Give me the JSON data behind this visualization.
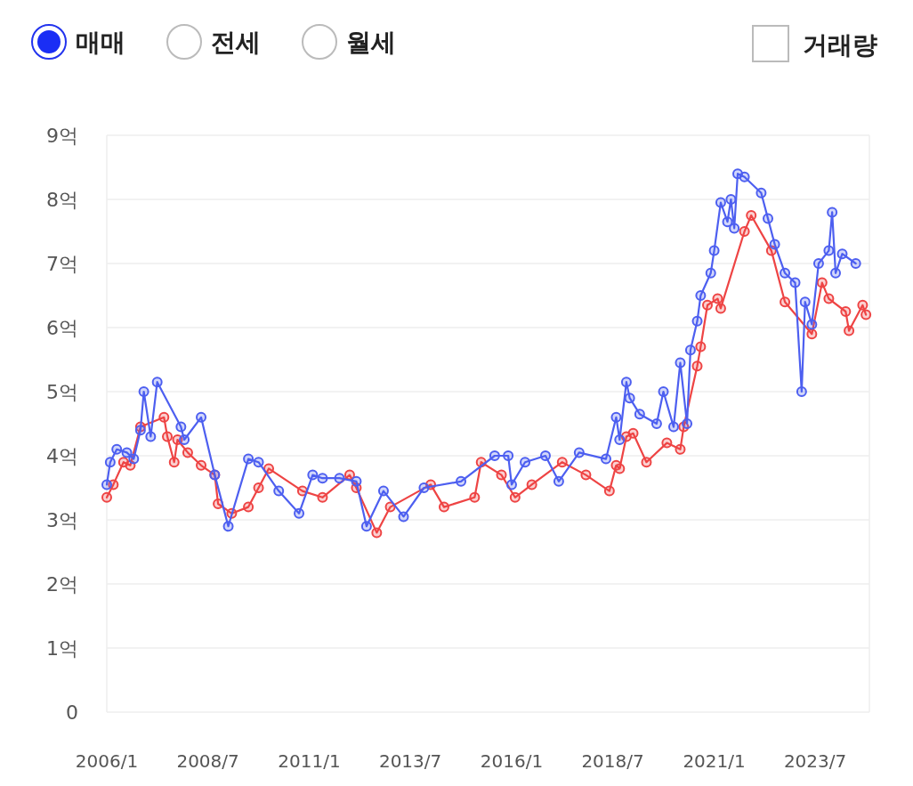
{
  "chart_data": {
    "type": "line",
    "annotations": [
      "매매",
      "전세",
      "월세",
      "거래량"
    ],
    "xlim": [
      "2006-01",
      "2024-11"
    ],
    "xticks": [
      {
        "value": "2006-01",
        "label": "2006/1"
      },
      {
        "value": "2008-07",
        "label": "2008/7"
      },
      {
        "value": "2011-01",
        "label": "2011/1"
      },
      {
        "value": "2013-07",
        "label": "2013/7"
      },
      {
        "value": "2016-01",
        "label": "2016/1"
      },
      {
        "value": "2018-07",
        "label": "2018/7"
      },
      {
        "value": "2021-01",
        "label": "2021/1"
      },
      {
        "value": "2023-07",
        "label": "2023/7"
      }
    ],
    "ylim": [
      0,
      9
    ],
    "yticks": [
      0,
      {
        "value": 1,
        "label": "1억"
      },
      {
        "value": 2,
        "label": "2억"
      },
      {
        "value": 3,
        "label": "3억"
      },
      {
        "value": 4,
        "label": "4억"
      },
      {
        "value": 5,
        "label": "5억"
      },
      {
        "value": 6,
        "label": "6억"
      },
      {
        "value": 7,
        "label": "7억"
      },
      {
        "value": 8,
        "label": "8억"
      },
      {
        "value": 9,
        "label": "9억"
      }
    ],
    "grid": "y",
    "marker": "circle",
    "line_style": "solid",
    "series": [
      {
        "color": "#ee4444",
        "x": [
          "2006-01",
          "2006-03",
          "2006-06",
          "2006-08",
          "2006-11",
          "2007-06",
          "2007-07",
          "2007-09",
          "2007-10",
          "2008-01",
          "2008-05",
          "2008-09",
          "2008-10",
          "2009-02",
          "2009-07",
          "2009-10",
          "2010-01",
          "2010-11",
          "2011-05",
          "2012-01",
          "2012-03",
          "2012-09",
          "2013-01",
          "2014-01",
          "2014-05",
          "2015-02",
          "2015-04",
          "2015-10",
          "2016-02",
          "2016-07",
          "2017-04",
          "2017-11",
          "2018-06",
          "2018-08",
          "2018-09",
          "2018-11",
          "2019-01",
          "2019-05",
          "2019-11",
          "2020-03",
          "2020-04",
          "2020-08",
          "2020-09",
          "2020-11",
          "2021-02",
          "2021-03",
          "2021-10",
          "2021-12",
          "2022-06",
          "2022-10",
          "2023-06",
          "2023-09",
          "2023-11",
          "2024-04",
          "2024-05",
          "2024-09",
          "2024-10"
        ],
        "values": [
          3.35,
          3.55,
          3.9,
          3.85,
          4.45,
          4.6,
          4.3,
          3.9,
          4.25,
          4.05,
          3.85,
          3.7,
          3.25,
          3.1,
          3.2,
          3.5,
          3.8,
          3.45,
          3.35,
          3.7,
          3.5,
          2.8,
          3.2,
          3.55,
          3.2,
          3.35,
          3.9,
          3.7,
          3.35,
          3.55,
          3.9,
          3.7,
          3.45,
          3.85,
          3.8,
          4.3,
          4.35,
          3.9,
          4.2,
          4.1,
          4.45,
          5.4,
          5.7,
          6.35,
          6.45,
          6.3,
          7.5,
          7.75,
          7.2,
          6.4,
          5.9,
          6.7,
          6.45,
          6.25,
          5.95,
          6.35,
          6.2
        ]
      },
      {
        "color": "#4d5ff0",
        "x": [
          "2006-01",
          "2006-02",
          "2006-04",
          "2006-07",
          "2006-09",
          "2006-11",
          "2006-12",
          "2007-02",
          "2007-04",
          "2007-11",
          "2007-12",
          "2008-05",
          "2008-09",
          "2009-01",
          "2009-07",
          "2009-10",
          "2010-04",
          "2010-10",
          "2011-02",
          "2011-05",
          "2011-10",
          "2012-03",
          "2012-06",
          "2012-11",
          "2013-05",
          "2013-11",
          "2014-10",
          "2015-08",
          "2015-12",
          "2016-01",
          "2016-05",
          "2016-11",
          "2017-03",
          "2017-09",
          "2018-05",
          "2018-08",
          "2018-09",
          "2018-11",
          "2018-12",
          "2019-03",
          "2019-08",
          "2019-10",
          "2020-01",
          "2020-03",
          "2020-05",
          "2020-06",
          "2020-08",
          "2020-09",
          "2020-12",
          "2021-01",
          "2021-03",
          "2021-05",
          "2021-06",
          "2021-07",
          "2021-08",
          "2021-10",
          "2022-03",
          "2022-05",
          "2022-07",
          "2022-10",
          "2023-01",
          "2023-03",
          "2023-04",
          "2023-06",
          "2023-08",
          "2023-11",
          "2023-12",
          "2024-01",
          "2024-03",
          "2024-07"
        ],
        "values": [
          3.55,
          3.9,
          4.1,
          4.05,
          3.95,
          4.4,
          5.0,
          4.3,
          5.15,
          4.45,
          4.25,
          4.6,
          3.7,
          2.9,
          3.95,
          3.9,
          3.45,
          3.1,
          3.7,
          3.65,
          3.65,
          3.6,
          2.9,
          3.45,
          3.05,
          3.5,
          3.6,
          4.0,
          4.0,
          3.55,
          3.9,
          4.0,
          3.6,
          4.05,
          3.95,
          4.6,
          4.25,
          5.15,
          4.9,
          4.65,
          4.5,
          5.0,
          4.45,
          5.45,
          4.5,
          5.65,
          6.1,
          6.5,
          6.85,
          7.2,
          7.95,
          7.65,
          8.0,
          7.55,
          8.4,
          8.35,
          8.1,
          7.7,
          7.3,
          6.85,
          6.7,
          5.0,
          6.4,
          6.05,
          7.0,
          7.2,
          7.8,
          6.85,
          7.15,
          7.0
        ]
      }
    ]
  }
}
